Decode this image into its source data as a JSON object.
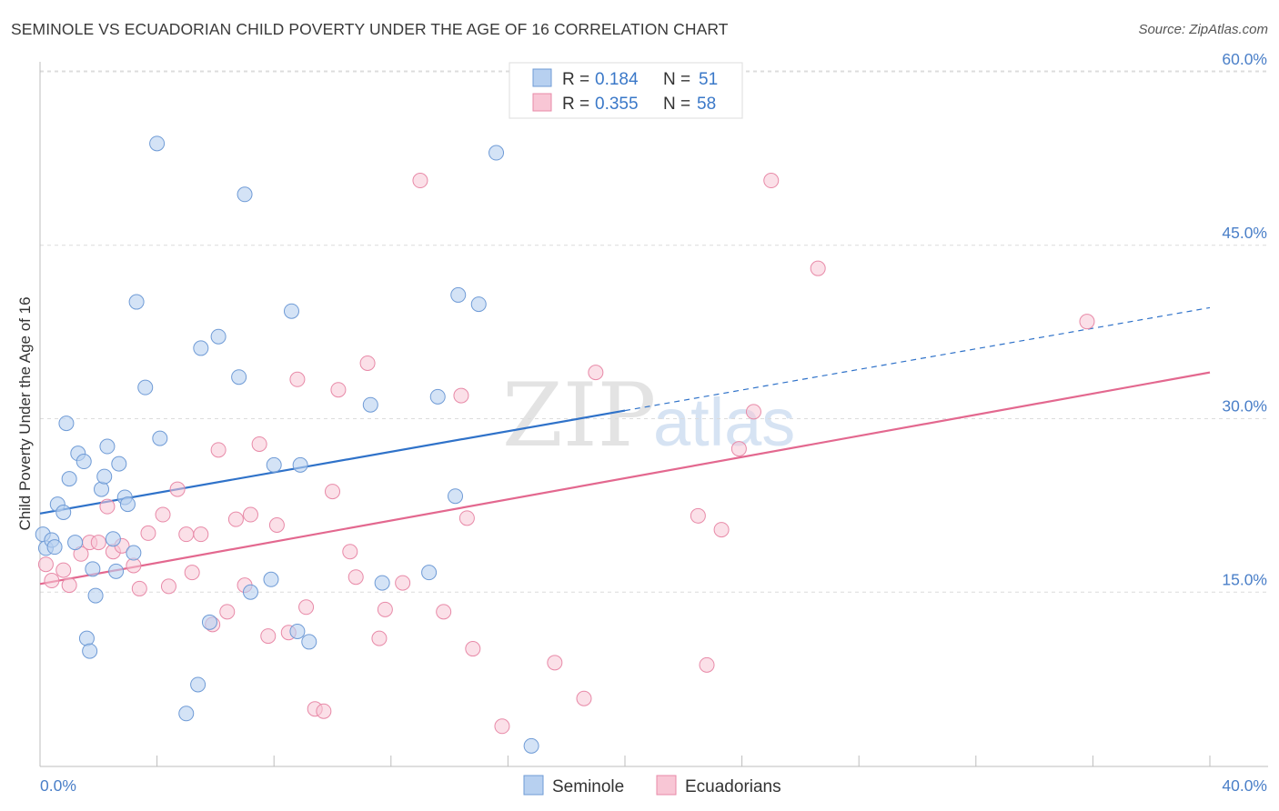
{
  "header": {
    "title": "SEMINOLE VS ECUADORIAN CHILD POVERTY UNDER THE AGE OF 16 CORRELATION CHART",
    "source": "Source: ZipAtlas.com"
  },
  "watermark": {
    "zip": "ZIP",
    "atlas": "atlas"
  },
  "colors": {
    "seminole_fill": "#b7d0f0",
    "seminole_stroke": "#6f9bd6",
    "seminole_line": "#2f72c9",
    "ecuadorian_fill": "#f8c6d5",
    "ecuadorian_stroke": "#e88aa8",
    "ecuadorian_line": "#e3688f",
    "axis_label": "#4a7fc8"
  },
  "legend": {
    "rows": [
      {
        "r_label": "R =",
        "r_value": "0.184",
        "n_label": "N =",
        "n_value": "51"
      },
      {
        "r_label": "R =",
        "r_value": "0.355",
        "n_label": "N =",
        "n_value": "58"
      }
    ]
  },
  "bottom_legend": {
    "items": [
      "Seminole",
      "Ecuadorians"
    ]
  },
  "chart_data": {
    "type": "scatter",
    "title": "SEMINOLE VS ECUADORIAN CHILD POVERTY UNDER THE AGE OF 16 CORRELATION CHART",
    "xlabel": "",
    "ylabel": "Child Poverty Under the Age of 16",
    "xlim": [
      0,
      40
    ],
    "ylim": [
      0,
      60
    ],
    "x_tick_labels": [
      "0.0%",
      "40.0%"
    ],
    "y_ticks": [
      15,
      30,
      45,
      60
    ],
    "y_tick_labels": [
      "15.0%",
      "30.0%",
      "45.0%",
      "60.0%"
    ],
    "grid": true,
    "series": [
      {
        "name": "Seminole",
        "r": 0.184,
        "n": 51,
        "trend": {
          "x0": 0,
          "y0": 21.8,
          "x1": 20,
          "y1": 30.7,
          "dash_to_x": 40,
          "dash_to_y": 39.6
        },
        "points": [
          [
            0.1,
            20.0
          ],
          [
            0.2,
            18.8
          ],
          [
            0.4,
            19.5
          ],
          [
            0.5,
            18.9
          ],
          [
            0.6,
            22.6
          ],
          [
            0.8,
            21.9
          ],
          [
            0.9,
            29.6
          ],
          [
            1.0,
            24.8
          ],
          [
            1.2,
            19.3
          ],
          [
            1.3,
            27.0
          ],
          [
            1.5,
            26.3
          ],
          [
            1.6,
            11.0
          ],
          [
            1.7,
            9.9
          ],
          [
            1.8,
            17.0
          ],
          [
            1.9,
            14.7
          ],
          [
            2.1,
            23.9
          ],
          [
            2.2,
            25.0
          ],
          [
            2.3,
            27.6
          ],
          [
            2.5,
            19.6
          ],
          [
            2.6,
            16.8
          ],
          [
            2.7,
            26.1
          ],
          [
            2.9,
            23.2
          ],
          [
            3.0,
            22.6
          ],
          [
            3.2,
            18.4
          ],
          [
            3.3,
            40.1
          ],
          [
            3.6,
            32.7
          ],
          [
            4.0,
            53.8
          ],
          [
            4.1,
            28.3
          ],
          [
            5.0,
            4.5
          ],
          [
            5.4,
            7.0
          ],
          [
            5.5,
            36.1
          ],
          [
            5.8,
            12.4
          ],
          [
            6.1,
            37.1
          ],
          [
            6.8,
            33.6
          ],
          [
            7.0,
            49.4
          ],
          [
            7.2,
            15.0
          ],
          [
            7.9,
            16.1
          ],
          [
            8.0,
            26.0
          ],
          [
            8.6,
            39.3
          ],
          [
            8.8,
            11.6
          ],
          [
            8.9,
            26.0
          ],
          [
            9.2,
            10.7
          ],
          [
            11.3,
            31.2
          ],
          [
            11.7,
            15.8
          ],
          [
            13.3,
            16.7
          ],
          [
            13.6,
            31.9
          ],
          [
            14.2,
            23.3
          ],
          [
            14.3,
            40.7
          ],
          [
            15.0,
            39.9
          ],
          [
            15.6,
            53.0
          ],
          [
            16.8,
            1.7
          ]
        ]
      },
      {
        "name": "Ecuadorians",
        "r": 0.355,
        "n": 58,
        "trend": {
          "x0": 0,
          "y0": 15.7,
          "x1": 40,
          "y1": 34.0
        },
        "points": [
          [
            0.2,
            17.4
          ],
          [
            0.4,
            16.0
          ],
          [
            0.8,
            16.9
          ],
          [
            1.0,
            15.6
          ],
          [
            1.4,
            18.3
          ],
          [
            1.7,
            19.3
          ],
          [
            2.0,
            19.3
          ],
          [
            2.3,
            22.4
          ],
          [
            2.5,
            18.5
          ],
          [
            2.8,
            19.0
          ],
          [
            3.2,
            17.3
          ],
          [
            3.4,
            15.3
          ],
          [
            3.7,
            20.1
          ],
          [
            4.2,
            21.7
          ],
          [
            4.4,
            15.5
          ],
          [
            4.7,
            23.9
          ],
          [
            5.0,
            20.0
          ],
          [
            5.2,
            16.7
          ],
          [
            5.5,
            20.0
          ],
          [
            5.9,
            12.2
          ],
          [
            6.1,
            27.3
          ],
          [
            6.4,
            13.3
          ],
          [
            6.7,
            21.3
          ],
          [
            7.0,
            15.6
          ],
          [
            7.2,
            21.7
          ],
          [
            7.5,
            27.8
          ],
          [
            7.8,
            11.2
          ],
          [
            8.1,
            20.8
          ],
          [
            8.5,
            11.5
          ],
          [
            8.8,
            33.4
          ],
          [
            9.1,
            13.7
          ],
          [
            9.4,
            4.9
          ],
          [
            9.7,
            4.7
          ],
          [
            10.0,
            23.7
          ],
          [
            10.2,
            32.5
          ],
          [
            10.6,
            18.5
          ],
          [
            10.8,
            16.3
          ],
          [
            11.2,
            34.8
          ],
          [
            11.6,
            11.0
          ],
          [
            11.8,
            13.5
          ],
          [
            12.4,
            15.8
          ],
          [
            13.0,
            50.6
          ],
          [
            13.8,
            13.3
          ],
          [
            14.4,
            32.0
          ],
          [
            14.6,
            21.4
          ],
          [
            14.8,
            10.1
          ],
          [
            15.8,
            3.4
          ],
          [
            17.6,
            8.9
          ],
          [
            18.6,
            5.8
          ],
          [
            19.0,
            34.0
          ],
          [
            22.5,
            21.6
          ],
          [
            22.8,
            8.7
          ],
          [
            23.3,
            20.4
          ],
          [
            23.9,
            27.4
          ],
          [
            24.4,
            30.6
          ],
          [
            25.0,
            50.6
          ],
          [
            26.6,
            43.0
          ],
          [
            35.8,
            38.4
          ]
        ]
      }
    ]
  }
}
